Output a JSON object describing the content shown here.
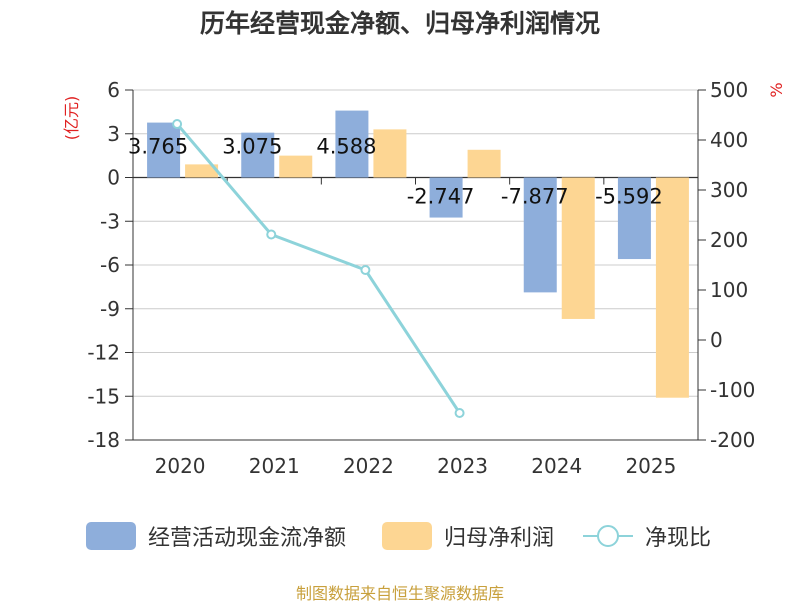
{
  "chart_data": {
    "type": "bar",
    "title": "历年经营现金净额、归母净利润情况",
    "categories": [
      "2020",
      "2021",
      "2022",
      "2023",
      "2024",
      "2025"
    ],
    "series": [
      {
        "name": "经营活动现金流净额",
        "axis": "left",
        "color": "#8eaedb",
        "values": [
          3.765,
          3.075,
          4.588,
          -2.747,
          -7.877,
          -5.592
        ],
        "labels": [
          "3.765",
          "3.075",
          "4.588",
          "-2.747",
          "-7.877",
          "-5.592"
        ]
      },
      {
        "name": "归母净利润",
        "axis": "left",
        "color": "#fdd693",
        "values": [
          0.9,
          1.5,
          3.3,
          1.9,
          -9.7,
          -15.1
        ]
      },
      {
        "name": "净现比",
        "axis": "right",
        "type": "line",
        "color": "#8dd3da",
        "values": [
          432,
          211,
          140,
          -146,
          null,
          null
        ]
      }
    ],
    "left_axis": {
      "label": "(亿元)",
      "ticks": [
        6,
        3,
        0,
        -3,
        -6,
        -9,
        -12,
        -15,
        -18
      ],
      "ylim": [
        -18,
        6
      ]
    },
    "right_axis": {
      "label": "%",
      "ticks": [
        500,
        400,
        300,
        200,
        100,
        0,
        -100,
        -200
      ],
      "ylim": [
        -200,
        500
      ]
    },
    "grid": true,
    "legend_position": "bottom"
  },
  "legend": {
    "items": [
      {
        "name": "经营活动现金流净额"
      },
      {
        "name": "归母净利润"
      },
      {
        "name": "净现比"
      }
    ]
  },
  "footer": {
    "source": "制图数据来自恒生聚源数据库"
  }
}
